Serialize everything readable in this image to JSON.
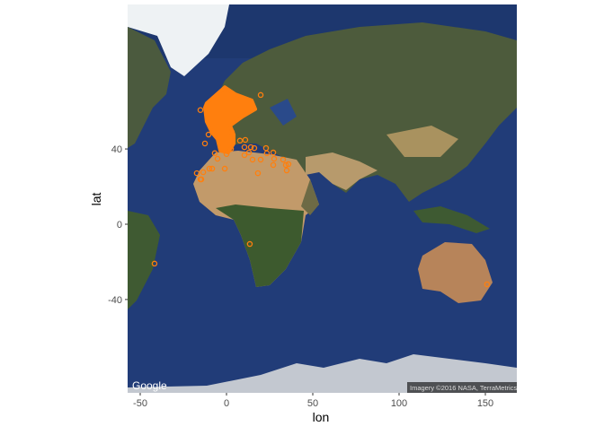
{
  "chart_data": {
    "type": "scatter",
    "basemap": "satellite",
    "xlabel": "lon",
    "ylabel": "lat",
    "xlim": [
      -56.8,
      168.8
    ],
    "ylim": [
      -75,
      82
    ],
    "x_ticks": [
      -50,
      0,
      50,
      100,
      150
    ],
    "y_ticks": [
      -40,
      0,
      40
    ],
    "projection": "mercator",
    "point_color": "#ff7f0e",
    "point_shape": "open-circle",
    "dense_cluster_outline": [
      [
        -11.5,
        57.3
      ],
      [
        -1,
        62
      ],
      [
        5.2,
        60
      ],
      [
        14.6,
        58.2
      ],
      [
        16.7,
        55.4
      ],
      [
        9.4,
        52.9
      ],
      [
        2.1,
        49.6
      ],
      [
        4.2,
        46.1
      ],
      [
        4.2,
        42.4
      ],
      [
        1,
        38.4
      ],
      [
        -3.6,
        39.2
      ],
      [
        -5.2,
        44.2
      ],
      [
        -8.3,
        46.8
      ],
      [
        -11.5,
        51.1
      ],
      [
        -12.5,
        55.9
      ]
    ],
    "points": [
      [
        19.8,
        59.8
      ],
      [
        -15.1,
        55.1
      ],
      [
        -10.4,
        46.1
      ],
      [
        -12.5,
        42.4
      ],
      [
        -6.8,
        38.1
      ],
      [
        -5.2,
        35.5
      ],
      [
        3.1,
        47.1
      ],
      [
        7.8,
        43.6
      ],
      [
        10.9,
        43.9
      ],
      [
        10.4,
        40.8
      ],
      [
        14.1,
        40.8
      ],
      [
        13,
        38.4
      ],
      [
        10.4,
        37.2
      ],
      [
        15.1,
        35.1
      ],
      [
        19.8,
        35.1
      ],
      [
        22.9,
        40.4
      ],
      [
        27.1,
        38.4
      ],
      [
        23.4,
        38.1
      ],
      [
        27.1,
        32.5
      ],
      [
        32.8,
        35.1
      ],
      [
        34.4,
        32.5
      ],
      [
        34.9,
        29.8
      ],
      [
        -9.9,
        30.7
      ],
      [
        -13.5,
        28.9
      ],
      [
        -15.1,
        25.2
      ],
      [
        0,
        37.7
      ],
      [
        2.6,
        40.0
      ],
      [
        -17.2,
        28.4
      ],
      [
        -14.6,
        25.2
      ],
      [
        -8.3,
        30.7
      ],
      [
        13.5,
        -11.4
      ],
      [
        -41.7,
        -22.3
      ],
      [
        151,
        -32.9
      ],
      [
        18.2,
        28.4
      ],
      [
        35.9,
        32.9
      ],
      [
        -1,
        30.7
      ],
      [
        16.1,
        40.4
      ],
      [
        27.6,
        35.5
      ]
    ]
  },
  "attribution": {
    "logo": "Google",
    "imagery": "Imagery ©2016 NASA, TerraMetrics"
  }
}
